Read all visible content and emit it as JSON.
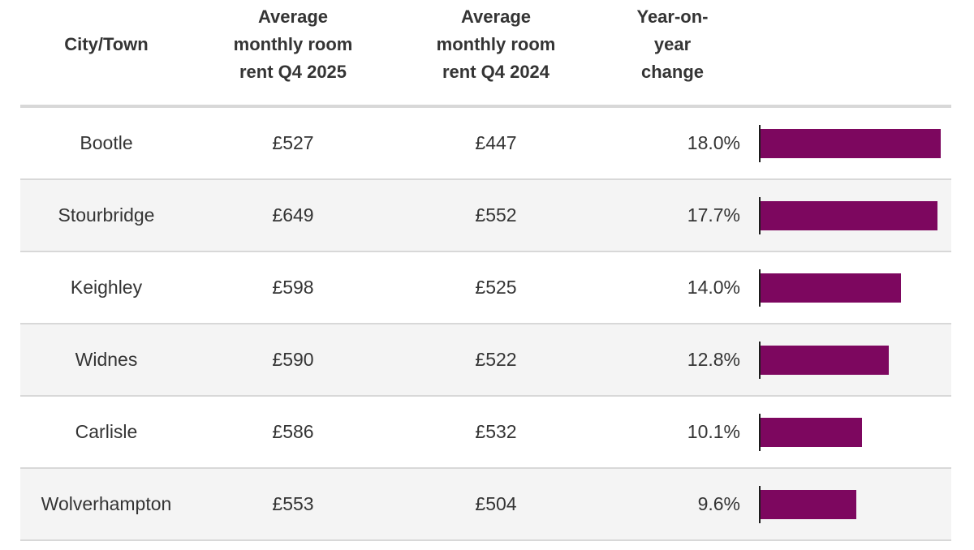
{
  "table": {
    "headers": [
      "City/Town",
      "Average monthly room rent Q4 2025",
      "Average monthly room rent Q4 2024",
      "Year-on-year change"
    ],
    "rows": [
      {
        "city": "Bootle",
        "rent_q4_2025": "£527",
        "rent_q4_2024": "£447",
        "yoy_change": "18.0%"
      },
      {
        "city": "Stourbridge",
        "rent_q4_2025": "£649",
        "rent_q4_2024": "£552",
        "yoy_change": "17.7%"
      },
      {
        "city": "Keighley",
        "rent_q4_2025": "£598",
        "rent_q4_2024": "£525",
        "yoy_change": "14.0%"
      },
      {
        "city": "Widnes",
        "rent_q4_2025": "£590",
        "rent_q4_2024": "£522",
        "yoy_change": "12.8%"
      },
      {
        "city": "Carlisle",
        "rent_q4_2025": "£586",
        "rent_q4_2024": "£532",
        "yoy_change": "10.1%"
      },
      {
        "city": "Wolverhampton",
        "rent_q4_2025": "£553",
        "rent_q4_2024": "£504",
        "yoy_change": "9.6%"
      }
    ]
  },
  "chart_data": {
    "type": "bar",
    "orientation": "horizontal",
    "title": "",
    "series_name": "Year-on-year change",
    "categories": [
      "Bootle",
      "Stourbridge",
      "Keighley",
      "Widnes",
      "Carlisle",
      "Wolverhampton"
    ],
    "values": [
      18.0,
      17.7,
      14.0,
      12.8,
      10.1,
      9.6
    ],
    "value_labels": [
      "18.0%",
      "17.7%",
      "14.0%",
      "12.8%",
      "10.1%",
      "9.6%"
    ],
    "xlim": [
      0,
      18.0
    ],
    "grid": false,
    "legend": false,
    "bar_color": "#7d075f"
  },
  "colors": {
    "bar": "#7d075f",
    "row_stripe": "#f4f4f4",
    "divider": "#d8d8d8",
    "text": "#343434",
    "axis_line": "#1d1d1d"
  }
}
